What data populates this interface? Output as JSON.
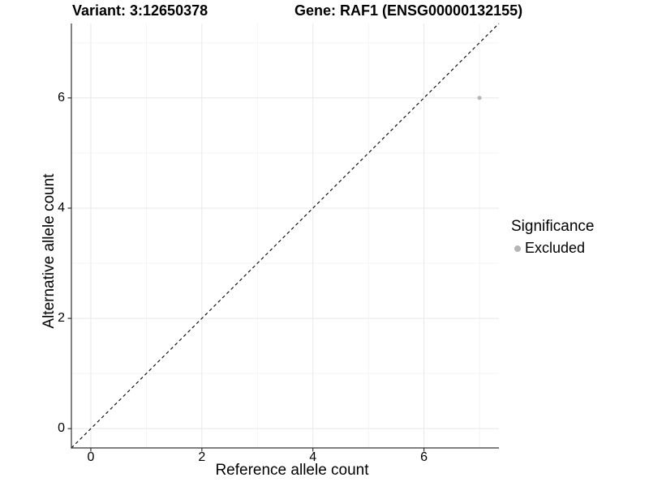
{
  "header": {
    "variant_title": "Variant: 3:12650378",
    "gene_title": "Gene: RAF1 (ENSG00000132155)"
  },
  "axes": {
    "x_label": "Reference allele count",
    "y_label": "Alternative allele count"
  },
  "legend": {
    "title": "Significance",
    "items": [
      {
        "label": "Excluded",
        "marker": "circle-icon",
        "color": "#b5b5b5"
      }
    ]
  },
  "chart_data": {
    "type": "scatter",
    "title": "Variant: 3:12650378 — Gene: RAF1 (ENSG00000132155)",
    "xlabel": "Reference allele count",
    "ylabel": "Alternative allele count",
    "xlim": [
      -0.35,
      7.35
    ],
    "ylim": [
      -0.35,
      7.35
    ],
    "x_ticks": [
      0,
      2,
      4,
      6
    ],
    "y_ticks": [
      0,
      2,
      4,
      6
    ],
    "minor_ticks": [
      1,
      3,
      5,
      7
    ],
    "grid": true,
    "legend_position": "right",
    "series": [
      {
        "name": "Excluded",
        "points": [
          {
            "x": 7,
            "y": 6
          }
        ]
      }
    ],
    "reference_line": {
      "type": "identity",
      "slope": 1,
      "intercept": 0,
      "style": "dashed",
      "color": "#000000"
    },
    "colors": {
      "point": "#b5b5b5",
      "grid_major": "#e8e8e8",
      "grid_minor": "#f3f3f3",
      "axis": "#333333",
      "text": "#000000",
      "background": "#ffffff"
    }
  }
}
